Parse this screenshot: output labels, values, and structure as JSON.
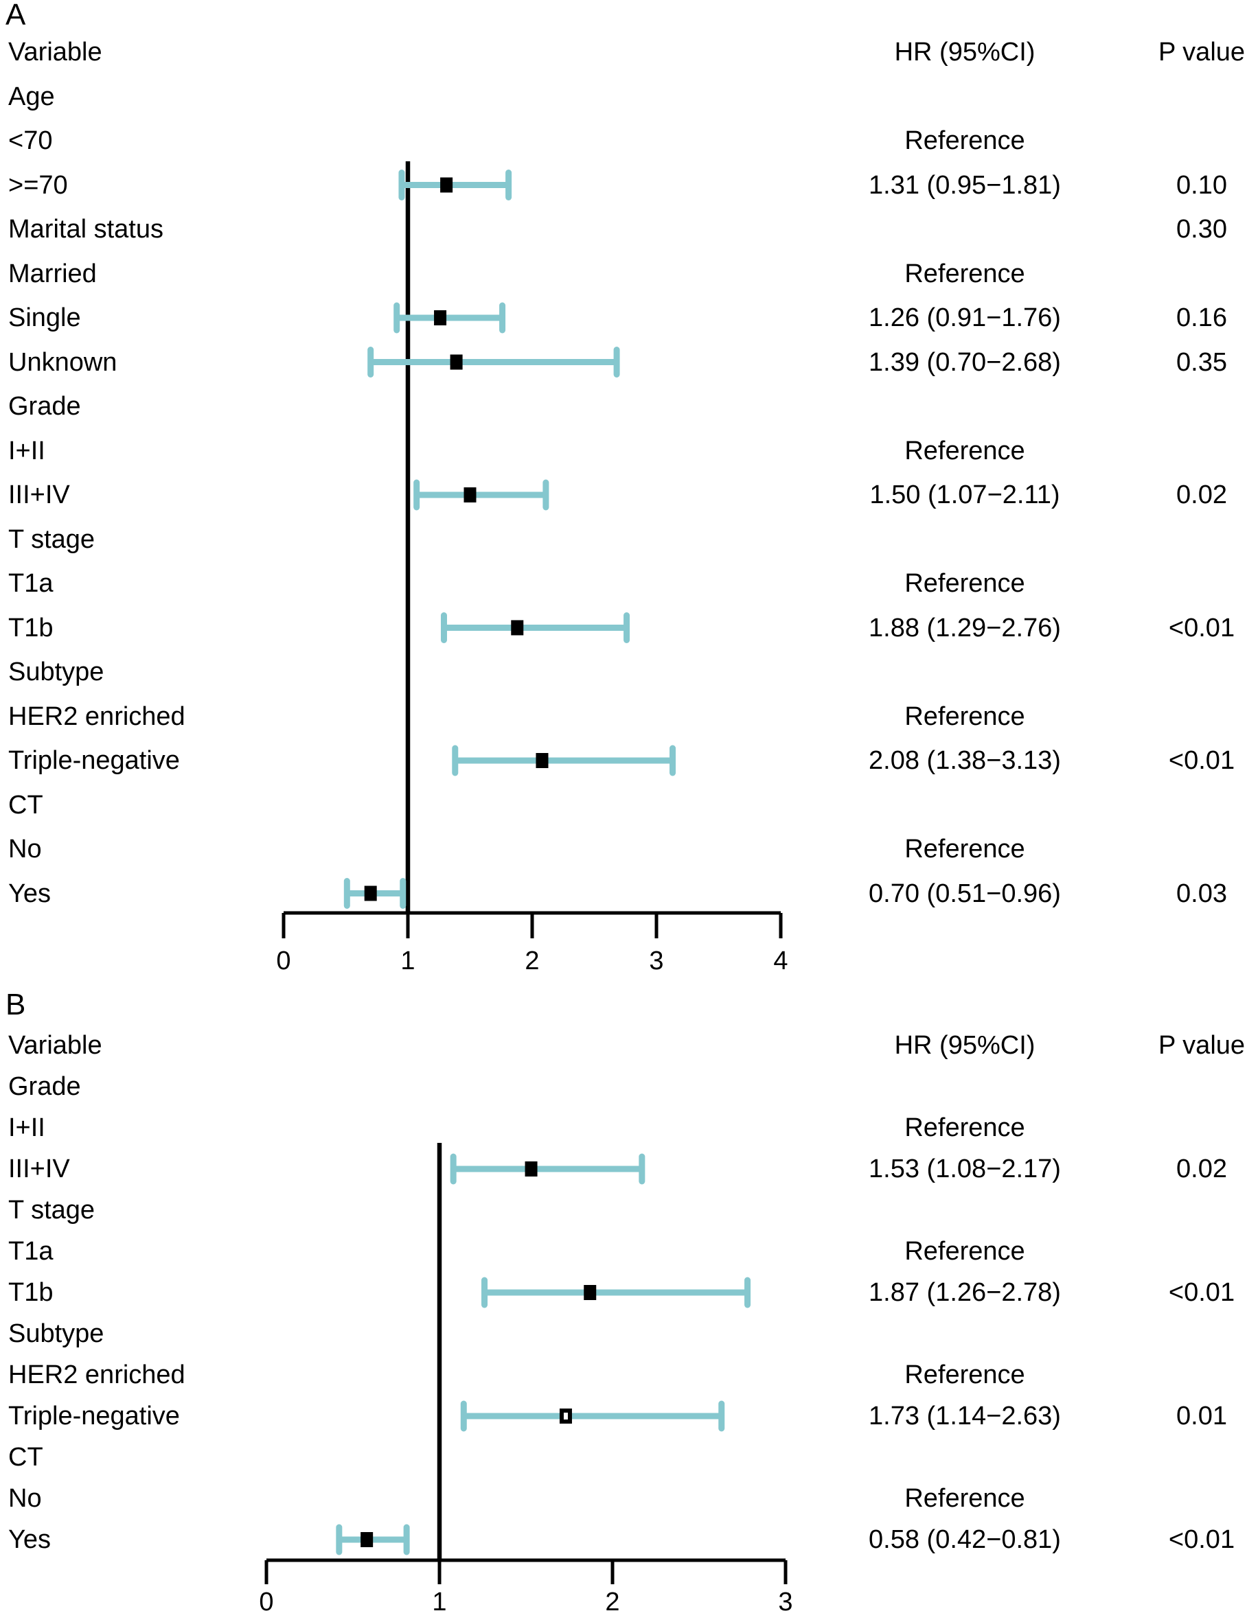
{
  "colors": {
    "ci_bar": "#85C7CE",
    "marker": "#000000",
    "axis": "#000000",
    "text": "#000000",
    "background": "#ffffff"
  },
  "chart_data": {
    "type": "forest",
    "panels": [
      {
        "letter": "A",
        "header": {
          "variable": "Variable",
          "hr": "HR (95%CI)",
          "p": "P value"
        },
        "axis": {
          "min": 0,
          "max": 4,
          "ticks": [
            0,
            1,
            2,
            3,
            4
          ],
          "reference": 1
        },
        "rows": [
          {
            "label": "Age"
          },
          {
            "label": "<70",
            "hr": "Reference"
          },
          {
            "label": ">=70",
            "hr": "1.31 (0.95−1.81)",
            "p": "0.10",
            "est": 1.31,
            "lo": 0.95,
            "hi": 1.81
          },
          {
            "label": "Marital status",
            "p": "0.30"
          },
          {
            "label": "Married",
            "hr": "Reference"
          },
          {
            "label": "Single",
            "hr": "1.26 (0.91−1.76)",
            "p": "0.16",
            "est": 1.26,
            "lo": 0.91,
            "hi": 1.76
          },
          {
            "label": "Unknown",
            "hr": "1.39 (0.70−2.68)",
            "p": "0.35",
            "est": 1.39,
            "lo": 0.7,
            "hi": 2.68
          },
          {
            "label": "Grade"
          },
          {
            "label": "I+II",
            "hr": "Reference"
          },
          {
            "label": "III+IV",
            "hr": "1.50 (1.07−2.11)",
            "p": "0.02",
            "est": 1.5,
            "lo": 1.07,
            "hi": 2.11
          },
          {
            "label": "T stage"
          },
          {
            "label": "T1a",
            "hr": "Reference"
          },
          {
            "label": "T1b",
            "hr": "1.88 (1.29−2.76)",
            "p": "<0.01",
            "est": 1.88,
            "lo": 1.29,
            "hi": 2.76
          },
          {
            "label": "Subtype"
          },
          {
            "label": "HER2 enriched",
            "hr": "Reference"
          },
          {
            "label": "Triple-negative",
            "hr": "2.08 (1.38−3.13)",
            "p": "<0.01",
            "est": 2.08,
            "lo": 1.38,
            "hi": 3.13
          },
          {
            "label": "CT"
          },
          {
            "label": "No",
            "hr": "Reference"
          },
          {
            "label": "Yes",
            "hr": "0.70 (0.51−0.96)",
            "p": "0.03",
            "est": 0.7,
            "lo": 0.51,
            "hi": 0.96
          }
        ]
      },
      {
        "letter": "B",
        "header": {
          "variable": "Variable",
          "hr": "HR (95%CI)",
          "p": "P value"
        },
        "axis": {
          "min": 0,
          "max": 3,
          "ticks": [
            0,
            1,
            2,
            3
          ],
          "reference": 1
        },
        "rows": [
          {
            "label": "Grade"
          },
          {
            "label": "I+II",
            "hr": "Reference"
          },
          {
            "label": "III+IV",
            "hr": "1.53 (1.08−2.17)",
            "p": "0.02",
            "est": 1.53,
            "lo": 1.08,
            "hi": 2.17
          },
          {
            "label": "T stage"
          },
          {
            "label": "T1a",
            "hr": "Reference"
          },
          {
            "label": "T1b",
            "hr": "1.87 (1.26−2.78)",
            "p": "<0.01",
            "est": 1.87,
            "lo": 1.26,
            "hi": 2.78
          },
          {
            "label": "Subtype"
          },
          {
            "label": "HER2 enriched",
            "hr": "Reference"
          },
          {
            "label": "Triple-negative",
            "hr": "1.73 (1.14−2.63)",
            "p": "0.01",
            "est": 1.73,
            "lo": 1.14,
            "hi": 2.63,
            "open_marker": true
          },
          {
            "label": "CT"
          },
          {
            "label": "No",
            "hr": "Reference"
          },
          {
            "label": "Yes",
            "hr": "0.58 (0.42−0.81)",
            "p": "<0.01",
            "est": 0.58,
            "lo": 0.42,
            "hi": 0.81
          }
        ]
      }
    ]
  }
}
